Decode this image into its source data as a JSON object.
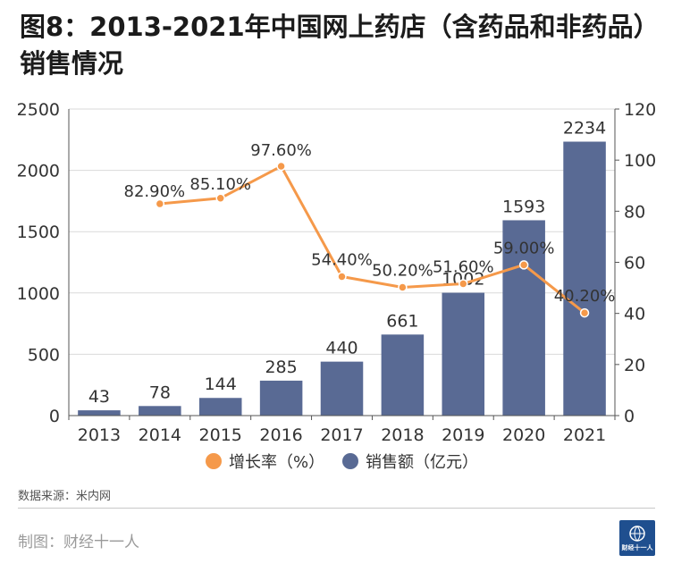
{
  "title": "图8：2013-2021年中国网上药店（含药品和非药品）销售情况",
  "source": "数据来源：米内网",
  "credit": "制图：财经十一人",
  "logo_text": "财经十一人",
  "chart_data": {
    "type": "bar",
    "categories": [
      "2013",
      "2014",
      "2015",
      "2016",
      "2017",
      "2018",
      "2019",
      "2020",
      "2021"
    ],
    "series": [
      {
        "name": "销售额（亿元）",
        "type": "bar",
        "axis": "left",
        "color": "#596a94",
        "values": [
          43,
          78,
          144,
          285,
          440,
          661,
          1002,
          1593,
          2234
        ],
        "labels": [
          "43",
          "78",
          "144",
          "285",
          "440",
          "661",
          "1002",
          "1593",
          "2234"
        ]
      },
      {
        "name": "增长率（%）",
        "type": "line",
        "axis": "right",
        "color": "#f5994a",
        "values": [
          null,
          82.9,
          85.1,
          97.6,
          54.4,
          50.2,
          51.6,
          59.0,
          40.2
        ],
        "labels": [
          "",
          "82.90%",
          "85.10%",
          "97.60%",
          "54.40%",
          "50.20%",
          "51.60%",
          "59.00%",
          "40.20%"
        ]
      }
    ],
    "legend": [
      "增长率（%）",
      "销售额（亿元）"
    ],
    "left_axis": {
      "min": 0,
      "max": 2500,
      "ticks": [
        0,
        500,
        1000,
        1500,
        2000,
        2500
      ]
    },
    "right_axis": {
      "min": 0,
      "max": 120,
      "ticks": [
        0,
        20,
        40,
        60,
        80,
        100,
        120
      ]
    },
    "grid": true
  }
}
